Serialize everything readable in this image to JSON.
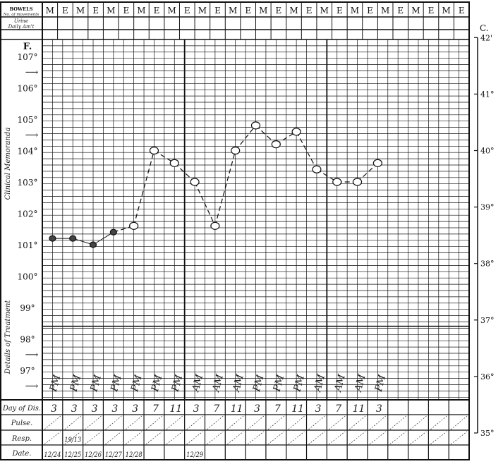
{
  "header": {
    "shift_labels": [
      "M",
      "E"
    ],
    "bowels_label": "BOWELS",
    "bowels_sub": "No. of movements",
    "urine_label": "Urine",
    "urine_sub": "Daily Am't"
  },
  "side_labels": {
    "fahrenheit_unit": "F.",
    "celsius_unit": "C.",
    "clinical": "Clinical Memoranda",
    "treatment": "Details of Treatment"
  },
  "bottom_rows": {
    "day_label": "Day of Dis.",
    "pulse_label": "Pulse.",
    "resp_label": "Resp.",
    "date_label": "Date."
  },
  "chart_data": {
    "type": "line",
    "y_fahrenheit_ticks": [
      "107°",
      "106°",
      "105°",
      "104°",
      "103°",
      "102°",
      "101°",
      "100°",
      "99°",
      "98°",
      "97°"
    ],
    "y_celsius_ticks": [
      "42'",
      "41°",
      "40°",
      "39°",
      "38°",
      "37°",
      "36°",
      "35°"
    ],
    "ylim_fahrenheit": [
      95,
      107.6
    ],
    "grid": true,
    "time_of_day": [
      "PM",
      "PM",
      "PM",
      "PM",
      "PM",
      "PM",
      "PM",
      "AM",
      "AM",
      "AM",
      "PM",
      "PM",
      "PM",
      "AM",
      "AM",
      "AM",
      "PM"
    ],
    "day_of_disease": [
      "3",
      "3",
      "3",
      "3",
      "3",
      "7",
      "11",
      "3",
      "7",
      "11",
      "3",
      "7",
      "11",
      "3",
      "7",
      "11",
      "3"
    ],
    "dates": [
      "12/24",
      "12/25",
      "12/26",
      "12/27",
      "12/28",
      "",
      "",
      "12/29"
    ],
    "resp": [
      "",
      "19/13"
    ],
    "temperature_f": [
      101.2,
      101.2,
      101.0,
      101.4,
      101.6,
      104.0,
      103.6,
      103.0,
      101.6,
      104.0,
      104.8,
      104.2,
      104.6,
      103.4,
      103.0,
      103.0,
      103.6
    ],
    "filled_points": 4,
    "colors": {
      "ink": "#111111",
      "paper": "#ffffff"
    }
  }
}
